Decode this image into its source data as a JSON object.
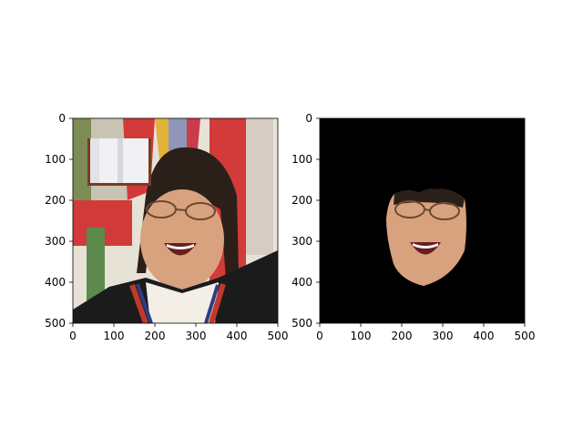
{
  "figure": {
    "panels": [
      {
        "id": "original",
        "description": "",
        "x_ticks": [
          "0",
          "100",
          "200",
          "300",
          "400",
          "500"
        ],
        "y_ticks": [
          "0",
          "100",
          "200",
          "300",
          "400",
          "500"
        ],
        "xlim": [
          0,
          500
        ],
        "ylim": [
          500,
          0
        ]
      },
      {
        "id": "segmented",
        "description": "",
        "x_ticks": [
          "0",
          "100",
          "200",
          "300",
          "400",
          "500"
        ],
        "y_ticks": [
          "0",
          "100",
          "200",
          "300",
          "400",
          "500"
        ],
        "xlim": [
          0,
          500
        ],
        "ylim": [
          500,
          0
        ]
      }
    ]
  },
  "colors": {
    "background": "#ffffff",
    "mask_background": "#000000",
    "hair": "#2b1f1a",
    "skin": "#d9a27f",
    "flag_red": "#d23a3a",
    "flag_light": "#e7e2d6",
    "robe": "#1b1b1b",
    "ribbon_red": "#c0392b",
    "ribbon_blue": "#2f3d85"
  }
}
